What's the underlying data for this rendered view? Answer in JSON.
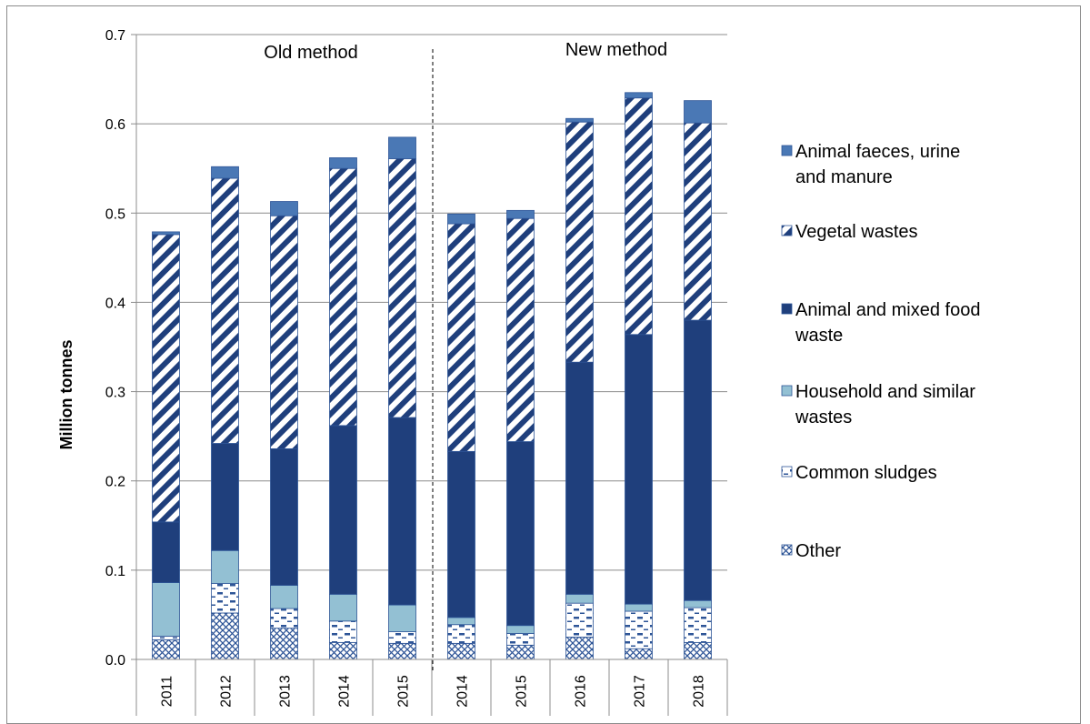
{
  "chart_data": {
    "type": "bar",
    "stacked": true,
    "categories": [
      "2011",
      "2012",
      "2013",
      "2014",
      "2015",
      "2014",
      "2015",
      "2016",
      "2017",
      "2018"
    ],
    "ylabel": "Million tonnes",
    "xlabel": "",
    "ylim": [
      0,
      0.7
    ],
    "yticks": [
      "0.0",
      "0.1",
      "0.2",
      "0.3",
      "0.4",
      "0.5",
      "0.6",
      "0.7"
    ],
    "grid": true,
    "legend_position": "right",
    "region_labels": [
      "Old method",
      "New method"
    ],
    "series": [
      {
        "name": "Other",
        "pattern": "crosshatch",
        "color": "#2e5597",
        "values": [
          0.022,
          0.052,
          0.035,
          0.019,
          0.018,
          0.018,
          0.016,
          0.025,
          0.012,
          0.019
        ]
      },
      {
        "name": "Common sludges",
        "pattern": "dashes",
        "color": "#2e5597",
        "values": [
          0.004,
          0.033,
          0.022,
          0.024,
          0.013,
          0.021,
          0.013,
          0.038,
          0.042,
          0.039
        ]
      },
      {
        "name": "Household and similar wastes",
        "pattern": "solid",
        "color": "#93c0d3",
        "values": [
          0.06,
          0.037,
          0.026,
          0.03,
          0.03,
          0.008,
          0.009,
          0.01,
          0.008,
          0.008
        ]
      },
      {
        "name": "Animal and mixed food waste",
        "pattern": "solid",
        "color": "#1f3f7c",
        "values": [
          0.068,
          0.12,
          0.153,
          0.189,
          0.21,
          0.186,
          0.206,
          0.26,
          0.302,
          0.314
        ]
      },
      {
        "name": "Vegetal wastes",
        "pattern": "diagonal",
        "color": "#1f3f7c",
        "values": [
          0.322,
          0.297,
          0.261,
          0.288,
          0.29,
          0.255,
          0.25,
          0.269,
          0.265,
          0.221
        ]
      },
      {
        "name": "Animal faeces, urine and manure",
        "pattern": "solid",
        "color": "#4a78b5",
        "values": [
          0.003,
          0.013,
          0.016,
          0.012,
          0.024,
          0.011,
          0.009,
          0.004,
          0.006,
          0.025
        ]
      }
    ],
    "legend_order": [
      {
        "name": "Animal faeces, urine and manure",
        "lines": [
          "Animal faeces, urine",
          "and manure"
        ]
      },
      {
        "name": "Vegetal wastes",
        "lines": [
          "Vegetal wastes"
        ]
      },
      {
        "name": "Animal and mixed food waste",
        "lines": [
          "Animal and mixed food",
          "waste"
        ]
      },
      {
        "name": "Household and similar wastes",
        "lines": [
          "Household and similar",
          "wastes"
        ]
      },
      {
        "name": "Common sludges",
        "lines": [
          "Common sludges"
        ]
      },
      {
        "name": "Other",
        "lines": [
          "Other"
        ]
      }
    ]
  }
}
